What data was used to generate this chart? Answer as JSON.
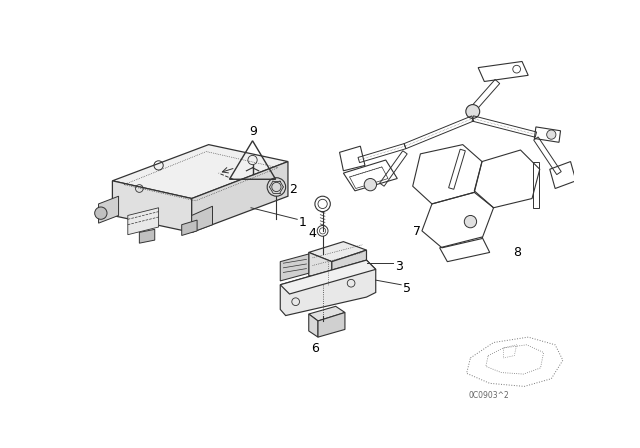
{
  "background_color": "#ffffff",
  "line_color": "#333333",
  "text_color": "#000000",
  "fig_width": 6.4,
  "fig_height": 4.48,
  "dpi": 100
}
